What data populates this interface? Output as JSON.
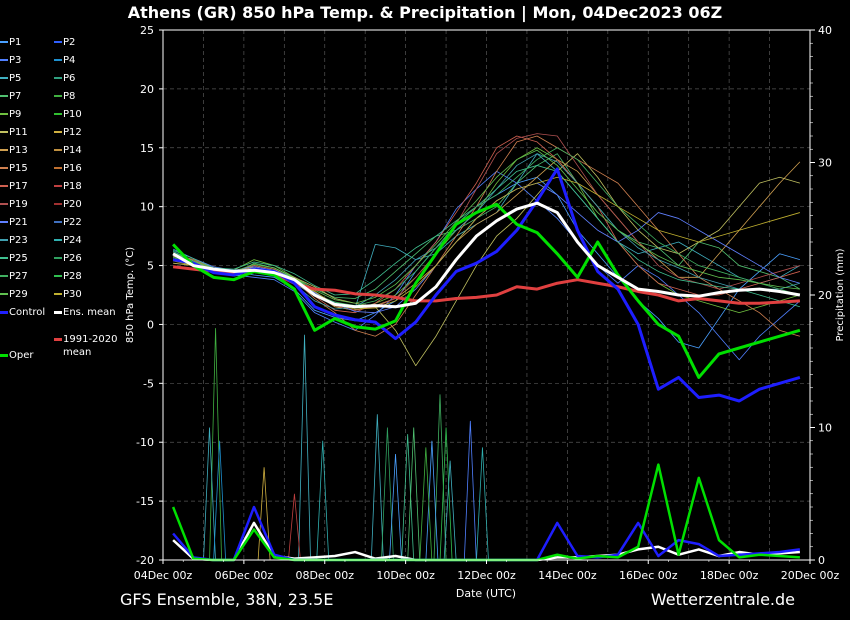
{
  "title": "Athens  (GR)  850 hPa Temp. & Precipitation | Mon, 04Dec2023 06Z",
  "footer_left": "GFS Ensemble, 38N, 23.5E",
  "footer_right": "Wetterzentrale.de",
  "legend": [
    {
      "label": "P1",
      "color": "#4aa0ff"
    },
    {
      "label": "P2",
      "color": "#3060ff"
    },
    {
      "label": "P3",
      "color": "#5080ff"
    },
    {
      "label": "P4",
      "color": "#1e90d0"
    },
    {
      "label": "P5",
      "color": "#40b0c0"
    },
    {
      "label": "P6",
      "color": "#30a080"
    },
    {
      "label": "P7",
      "color": "#50c070"
    },
    {
      "label": "P8",
      "color": "#40b040"
    },
    {
      "label": "P9",
      "color": "#70c040"
    },
    {
      "label": "P10",
      "color": "#30c030"
    },
    {
      "label": "P11",
      "color": "#c0c060"
    },
    {
      "label": "P12",
      "color": "#d0b040"
    },
    {
      "label": "P13",
      "color": "#d0a050"
    },
    {
      "label": "P14",
      "color": "#c09040"
    },
    {
      "label": "P15",
      "color": "#d08050"
    },
    {
      "label": "P16",
      "color": "#c07030"
    },
    {
      "label": "P17",
      "color": "#d06050"
    },
    {
      "label": "P18",
      "color": "#c04040"
    },
    {
      "label": "P19",
      "color": "#b05050"
    },
    {
      "label": "P20",
      "color": "#a03030"
    },
    {
      "label": "P21",
      "color": "#6080ff"
    },
    {
      "label": "P22",
      "color": "#4070c0"
    },
    {
      "label": "P23",
      "color": "#40a0b0"
    },
    {
      "label": "P24",
      "color": "#30b0b0"
    },
    {
      "label": "P25",
      "color": "#40c090"
    },
    {
      "label": "P26",
      "color": "#30a060"
    },
    {
      "label": "P27",
      "color": "#40b060"
    },
    {
      "label": "P28",
      "color": "#30c050"
    },
    {
      "label": "P29",
      "color": "#60c050"
    },
    {
      "label": "P30",
      "color": "#c0b030"
    },
    {
      "label": "Control",
      "color": "#2020ff"
    },
    {
      "label": "Ens. mean",
      "color": "#ffffff"
    },
    {
      "label": "1991-2020 mean",
      "color": "#e04040"
    },
    {
      "label": "Oper",
      "color": "#00e000"
    }
  ],
  "chart_data": {
    "type": "line",
    "xlabel": "Date (UTC)",
    "ylabel": "850 hPa Temp. (°C)",
    "ylabel_right": "Precipitation (mm)",
    "ylim": [
      -20,
      25
    ],
    "ylim_right": [
      0,
      40
    ],
    "yticks": [
      "25",
      "20",
      "15",
      "10",
      "5",
      "0",
      "-5",
      "-10",
      "-15",
      "-20"
    ],
    "yticks_right": [
      "40",
      "30",
      "20",
      "10",
      "0"
    ],
    "xticks": [
      "04Dec 00z",
      "06Dec 00z",
      "08Dec 00z",
      "10Dec 00z",
      "12Dec 00z",
      "14Dec 00z",
      "16Dec 00z",
      "18Dec 00z",
      "20Dec 00z"
    ],
    "grid": true,
    "x_days": [
      0.25,
      0.75,
      1.25,
      1.75,
      2.25,
      2.75,
      3.25,
      3.75,
      4.25,
      4.75,
      5.25,
      5.75,
      6.25,
      6.75,
      7.25,
      7.75,
      8.25,
      8.75,
      9.25,
      9.75,
      10.25,
      10.75,
      11.25,
      11.75,
      12.25,
      12.75,
      13.25,
      13.75,
      14.25,
      14.75,
      15.25,
      15.75
    ],
    "series": [
      {
        "name": "Ens. mean",
        "color": "#ffffff",
        "width": 3,
        "values": [
          6,
          5,
          4.7,
          4.5,
          4.6,
          4.4,
          3.8,
          2.5,
          1.7,
          1.5,
          1.6,
          1.5,
          1.8,
          3.2,
          5.5,
          7.5,
          8.8,
          9.8,
          10.3,
          9.5,
          7,
          5,
          4,
          3,
          2.8,
          2.5,
          2.4,
          2.7,
          2.9,
          3,
          2.8,
          2.5
        ]
      },
      {
        "name": "Control",
        "color": "#1e1eff",
        "width": 3,
        "values": [
          5.5,
          5.2,
          4.4,
          4.2,
          4.7,
          4.5,
          3.5,
          1.5,
          0.8,
          0.4,
          0.2,
          -1.2,
          0.2,
          2.5,
          4.5,
          5.2,
          6.2,
          8,
          10.5,
          13.2,
          8,
          4.5,
          3,
          0,
          -5.5,
          -4.5,
          -6.2,
          -6,
          -6.5,
          -5.5,
          -5,
          -4.5
        ]
      },
      {
        "name": "Oper",
        "color": "#00e000",
        "width": 3,
        "values": [
          6.8,
          5,
          4,
          3.8,
          4.5,
          4.2,
          3,
          -0.5,
          0.5,
          -0.2,
          -0.4,
          0.3,
          3.5,
          6,
          8.5,
          9.5,
          10.2,
          8.5,
          7.8,
          6,
          4,
          7,
          4.2,
          2,
          0,
          -1,
          -4.5,
          -2.5,
          -2,
          -1.5,
          -1,
          -0.5
        ]
      },
      {
        "name": "1991-2020 mean",
        "color": "#e04040",
        "width": 3,
        "values": [
          4.9,
          4.7,
          4.5,
          4.4,
          4.5,
          4.3,
          3.5,
          3,
          2.9,
          2.6,
          2.5,
          2.3,
          2,
          2,
          2.2,
          2.3,
          2.5,
          3.2,
          3,
          3.5,
          3.8,
          3.5,
          3.2,
          2.8,
          2.5,
          2,
          2.2,
          2,
          1.8,
          1.8,
          1.9,
          2
        ]
      },
      {
        "name": "P1",
        "color": "#4aa0ff",
        "width": 0.8,
        "values": [
          6,
          5.4,
          4.8,
          4.5,
          4.2,
          4,
          3,
          1.2,
          0.6,
          0.3,
          1,
          2,
          4.5,
          6.5,
          8.5,
          10,
          11,
          12,
          12.5,
          11,
          8,
          6,
          4,
          2,
          0.5,
          -1.5,
          -2,
          0.5,
          3,
          4.5,
          6,
          5.5
        ]
      },
      {
        "name": "P3",
        "color": "#5080ff",
        "width": 0.8,
        "values": [
          5.5,
          5,
          4.5,
          4.2,
          4,
          3.8,
          2.8,
          1,
          0.2,
          -0.5,
          0.8,
          2.5,
          5,
          7,
          9.8,
          11.5,
          13,
          12,
          10.5,
          9,
          7,
          5,
          3.5,
          5,
          4,
          2.5,
          1,
          -1,
          -3,
          -1,
          0.5,
          2
        ]
      },
      {
        "name": "P5",
        "color": "#40b0c0",
        "width": 0.8,
        "values": [
          6.2,
          5.4,
          4.6,
          4.1,
          4.4,
          4.2,
          3.5,
          2.4,
          1.9,
          1.4,
          6.8,
          6.5,
          5.5,
          6,
          7.5,
          8.5,
          9.5,
          12,
          14.5,
          13,
          11,
          9,
          7,
          6,
          6.5,
          7,
          6,
          5,
          4,
          3.5,
          4,
          5
        ]
      },
      {
        "name": "P7",
        "color": "#50c070",
        "width": 0.8,
        "values": [
          5.8,
          5.2,
          4.4,
          4.2,
          5.2,
          4.8,
          4,
          3,
          2.3,
          2.2,
          3,
          4.5,
          6,
          7.5,
          8,
          9,
          10,
          12,
          13.5,
          14.5,
          12,
          10,
          8,
          7,
          6.5,
          5,
          7,
          6.5,
          5,
          4.5,
          4,
          3
        ]
      },
      {
        "name": "P9",
        "color": "#70c040",
        "width": 0.8,
        "values": [
          6,
          5.5,
          4.7,
          4.6,
          5.5,
          5,
          4,
          2.8,
          1.5,
          1.2,
          1.8,
          2.5,
          4,
          6,
          8,
          9.5,
          12,
          14,
          15,
          14,
          12,
          9,
          7,
          5,
          3.5,
          2.5,
          2,
          1.5,
          1,
          1.5,
          2,
          2.5
        ]
      },
      {
        "name": "P11",
        "color": "#c0c060",
        "width": 0.8,
        "values": [
          5.2,
          5,
          4.8,
          4.6,
          4.8,
          4.5,
          4,
          3.2,
          2.2,
          1.8,
          1.5,
          -0.5,
          -3.5,
          -1,
          2,
          5,
          7.5,
          9,
          11,
          13,
          14.5,
          12.5,
          10,
          8,
          6.5,
          6,
          7,
          8,
          10,
          12,
          12.5,
          12
        ]
      },
      {
        "name": "P13",
        "color": "#d0a050",
        "width": 0.8,
        "values": [
          5.5,
          5.2,
          4.5,
          4.4,
          4.9,
          4.6,
          3.8,
          2.6,
          1.5,
          1.2,
          1.6,
          2.2,
          3.5,
          5,
          7,
          8.5,
          9.5,
          11,
          12.5,
          14,
          13,
          11,
          9,
          7,
          5.5,
          4,
          4,
          6,
          8,
          10,
          12,
          13.8
        ]
      },
      {
        "name": "P15",
        "color": "#d08050",
        "width": 0.8,
        "values": [
          5.8,
          5.3,
          4.6,
          4.5,
          5,
          4.7,
          3.8,
          2.2,
          1,
          -0.5,
          -1,
          0,
          2.5,
          5,
          7.5,
          10,
          13,
          15.5,
          16,
          15,
          14,
          13,
          12,
          10,
          8,
          6,
          4,
          3,
          2,
          1,
          -0.5,
          -1
        ]
      },
      {
        "name": "P17",
        "color": "#d06050",
        "width": 0.8,
        "values": [
          6,
          5.5,
          4.8,
          4.4,
          4.7,
          4.4,
          3.6,
          2.4,
          1.2,
          1,
          1.8,
          3,
          5,
          7,
          9.5,
          12,
          15,
          16,
          15.5,
          14,
          12,
          10,
          7,
          5,
          3.5,
          3,
          2.5,
          2.5,
          3,
          3.5,
          4,
          4.5
        ]
      },
      {
        "name": "P19",
        "color": "#b05050",
        "width": 0.8,
        "values": [
          5.6,
          5.1,
          4.5,
          4.3,
          4.6,
          4.5,
          3.7,
          2.5,
          1.6,
          1.2,
          1.5,
          2.2,
          4,
          6,
          8.5,
          11.5,
          14.5,
          15.8,
          16.2,
          16,
          13.5,
          11,
          9,
          7,
          5,
          4,
          3.5,
          3,
          3.5,
          4,
          4.5,
          5
        ]
      },
      {
        "name": "P21",
        "color": "#6080ff",
        "width": 0.8,
        "values": [
          6.4,
          5.6,
          4.9,
          4.6,
          4.9,
          4.6,
          3.9,
          2.7,
          1.8,
          1.1,
          1,
          1.5,
          3,
          5,
          7,
          9,
          10.5,
          11.5,
          12,
          11,
          9.5,
          8,
          7,
          8,
          9.5,
          9,
          8,
          7,
          6,
          5,
          4,
          3.5
        ]
      },
      {
        "name": "P23",
        "color": "#40a0b0",
        "width": 0.8,
        "values": [
          5.9,
          5.3,
          4.5,
          4.3,
          4.8,
          4.5,
          3.4,
          2,
          1.3,
          1.5,
          2.5,
          3.8,
          5.5,
          6.5,
          8,
          9.5,
          11.5,
          13.5,
          14.5,
          13.8,
          12,
          10,
          8,
          6.5,
          5.5,
          4.8,
          4,
          3.5,
          3,
          3,
          3,
          3.5
        ]
      },
      {
        "name": "P25",
        "color": "#40c090",
        "width": 0.8,
        "values": [
          6.3,
          5.6,
          4.8,
          4.7,
          5.3,
          5,
          4.3,
          3.3,
          2.5,
          2.6,
          3.8,
          5.2,
          6.5,
          7.5,
          8.8,
          10,
          11.5,
          13,
          13.5,
          13,
          11,
          9,
          7,
          5.5,
          4.5,
          3.8,
          3.5,
          3.2,
          3,
          2.5,
          2,
          1.5
        ]
      },
      {
        "name": "P27",
        "color": "#40b060",
        "width": 0.8,
        "values": [
          5.7,
          5.1,
          4.4,
          4.2,
          4.7,
          4.4,
          3.6,
          2.6,
          1.9,
          1.6,
          2,
          3,
          4.5,
          6.5,
          8.5,
          10,
          11,
          12.5,
          14,
          15,
          14,
          12,
          10,
          8.5,
          7,
          6,
          5,
          4.5,
          4,
          3.5,
          3,
          2.5
        ]
      },
      {
        "name": "P29",
        "color": "#60c050",
        "width": 0.8,
        "values": [
          6.1,
          5.4,
          4.7,
          4.5,
          5.1,
          4.8,
          3.9,
          2.9,
          2.1,
          1.8,
          2.3,
          3.4,
          5,
          6.8,
          8.7,
          10.5,
          12.5,
          14,
          14.8,
          13.5,
          11.5,
          9.5,
          8,
          6.8,
          5.8,
          5,
          4.5,
          4,
          3.8,
          3.5,
          3.2,
          3
        ]
      },
      {
        "name": "P30",
        "color": "#c0b030",
        "width": 0.8,
        "values": [
          5.4,
          5,
          4.6,
          4.4,
          4.7,
          4.4,
          3.6,
          2.8,
          1.7,
          1.3,
          1.4,
          2,
          3.2,
          5,
          7,
          9,
          10.5,
          11.5,
          12,
          12.5,
          12,
          11,
          10,
          9,
          8,
          7.5,
          7,
          7.5,
          8,
          8.5,
          9,
          9.5
        ]
      }
    ],
    "precip_series": [
      {
        "name": "Ens. mean",
        "color": "#ffffff",
        "width": 2.5,
        "values": [
          1.5,
          0.1,
          0,
          0,
          2.8,
          0.3,
          0.1,
          0.2,
          0.3,
          0.6,
          0.1,
          0.3,
          0,
          0,
          0,
          0,
          0,
          0,
          0,
          0.2,
          0.2,
          0.3,
          0.4,
          0.8,
          1,
          0.4,
          0.8,
          0.3,
          0.6,
          0.4,
          0.5,
          0.6
        ]
      },
      {
        "name": "Control",
        "color": "#1e1eff",
        "width": 2.5,
        "values": [
          2,
          0.2,
          0,
          0,
          4,
          0.4,
          0,
          0,
          0,
          0,
          0,
          0,
          0,
          0,
          0,
          0,
          0,
          0,
          0,
          2.8,
          0.3,
          0.2,
          0.4,
          2.8,
          0.3,
          1.5,
          1.2,
          0.3,
          0.4,
          0.5,
          0.6,
          0.8
        ]
      },
      {
        "name": "Oper",
        "color": "#00e000",
        "width": 2.5,
        "values": [
          4,
          0.1,
          0,
          0,
          2.3,
          0.2,
          0,
          0,
          0,
          0,
          0,
          0,
          0,
          0,
          0,
          0,
          0,
          0,
          0,
          0.4,
          0.1,
          0.3,
          0.2,
          1,
          7.2,
          0.4,
          6.2,
          1.5,
          0.2,
          0.4,
          0.3,
          0.2
        ]
      }
    ],
    "precip_spikes": [
      {
        "color": "#40b040",
        "x": 1.3,
        "v": 17.5
      },
      {
        "color": "#40b0c0",
        "x": 1.15,
        "v": 10
      },
      {
        "color": "#1e90d0",
        "x": 1.4,
        "v": 9
      },
      {
        "color": "#40b0c0",
        "x": 3.5,
        "v": 17
      },
      {
        "color": "#30b0b0",
        "x": 3.95,
        "v": 9
      },
      {
        "color": "#d0b040",
        "x": 2.5,
        "v": 7
      },
      {
        "color": "#c04040",
        "x": 3.25,
        "v": 5
      },
      {
        "color": "#40b0c0",
        "x": 5.3,
        "v": 11
      },
      {
        "color": "#30a060",
        "x": 5.55,
        "v": 10
      },
      {
        "color": "#4aa0ff",
        "x": 5.75,
        "v": 8
      },
      {
        "color": "#40c090",
        "x": 6.05,
        "v": 9.5
      },
      {
        "color": "#50c070",
        "x": 6.2,
        "v": 10
      },
      {
        "color": "#40b060",
        "x": 6.85,
        "v": 12.5
      },
      {
        "color": "#4aa0ff",
        "x": 6.65,
        "v": 9
      },
      {
        "color": "#40b040",
        "x": 6.5,
        "v": 8.5
      },
      {
        "color": "#30c050",
        "x": 7.0,
        "v": 10
      },
      {
        "color": "#5080ff",
        "x": 7.6,
        "v": 10.5
      },
      {
        "color": "#30b0b0",
        "x": 7.9,
        "v": 8.5
      },
      {
        "color": "#40b0c0",
        "x": 7.1,
        "v": 7.5
      }
    ]
  }
}
